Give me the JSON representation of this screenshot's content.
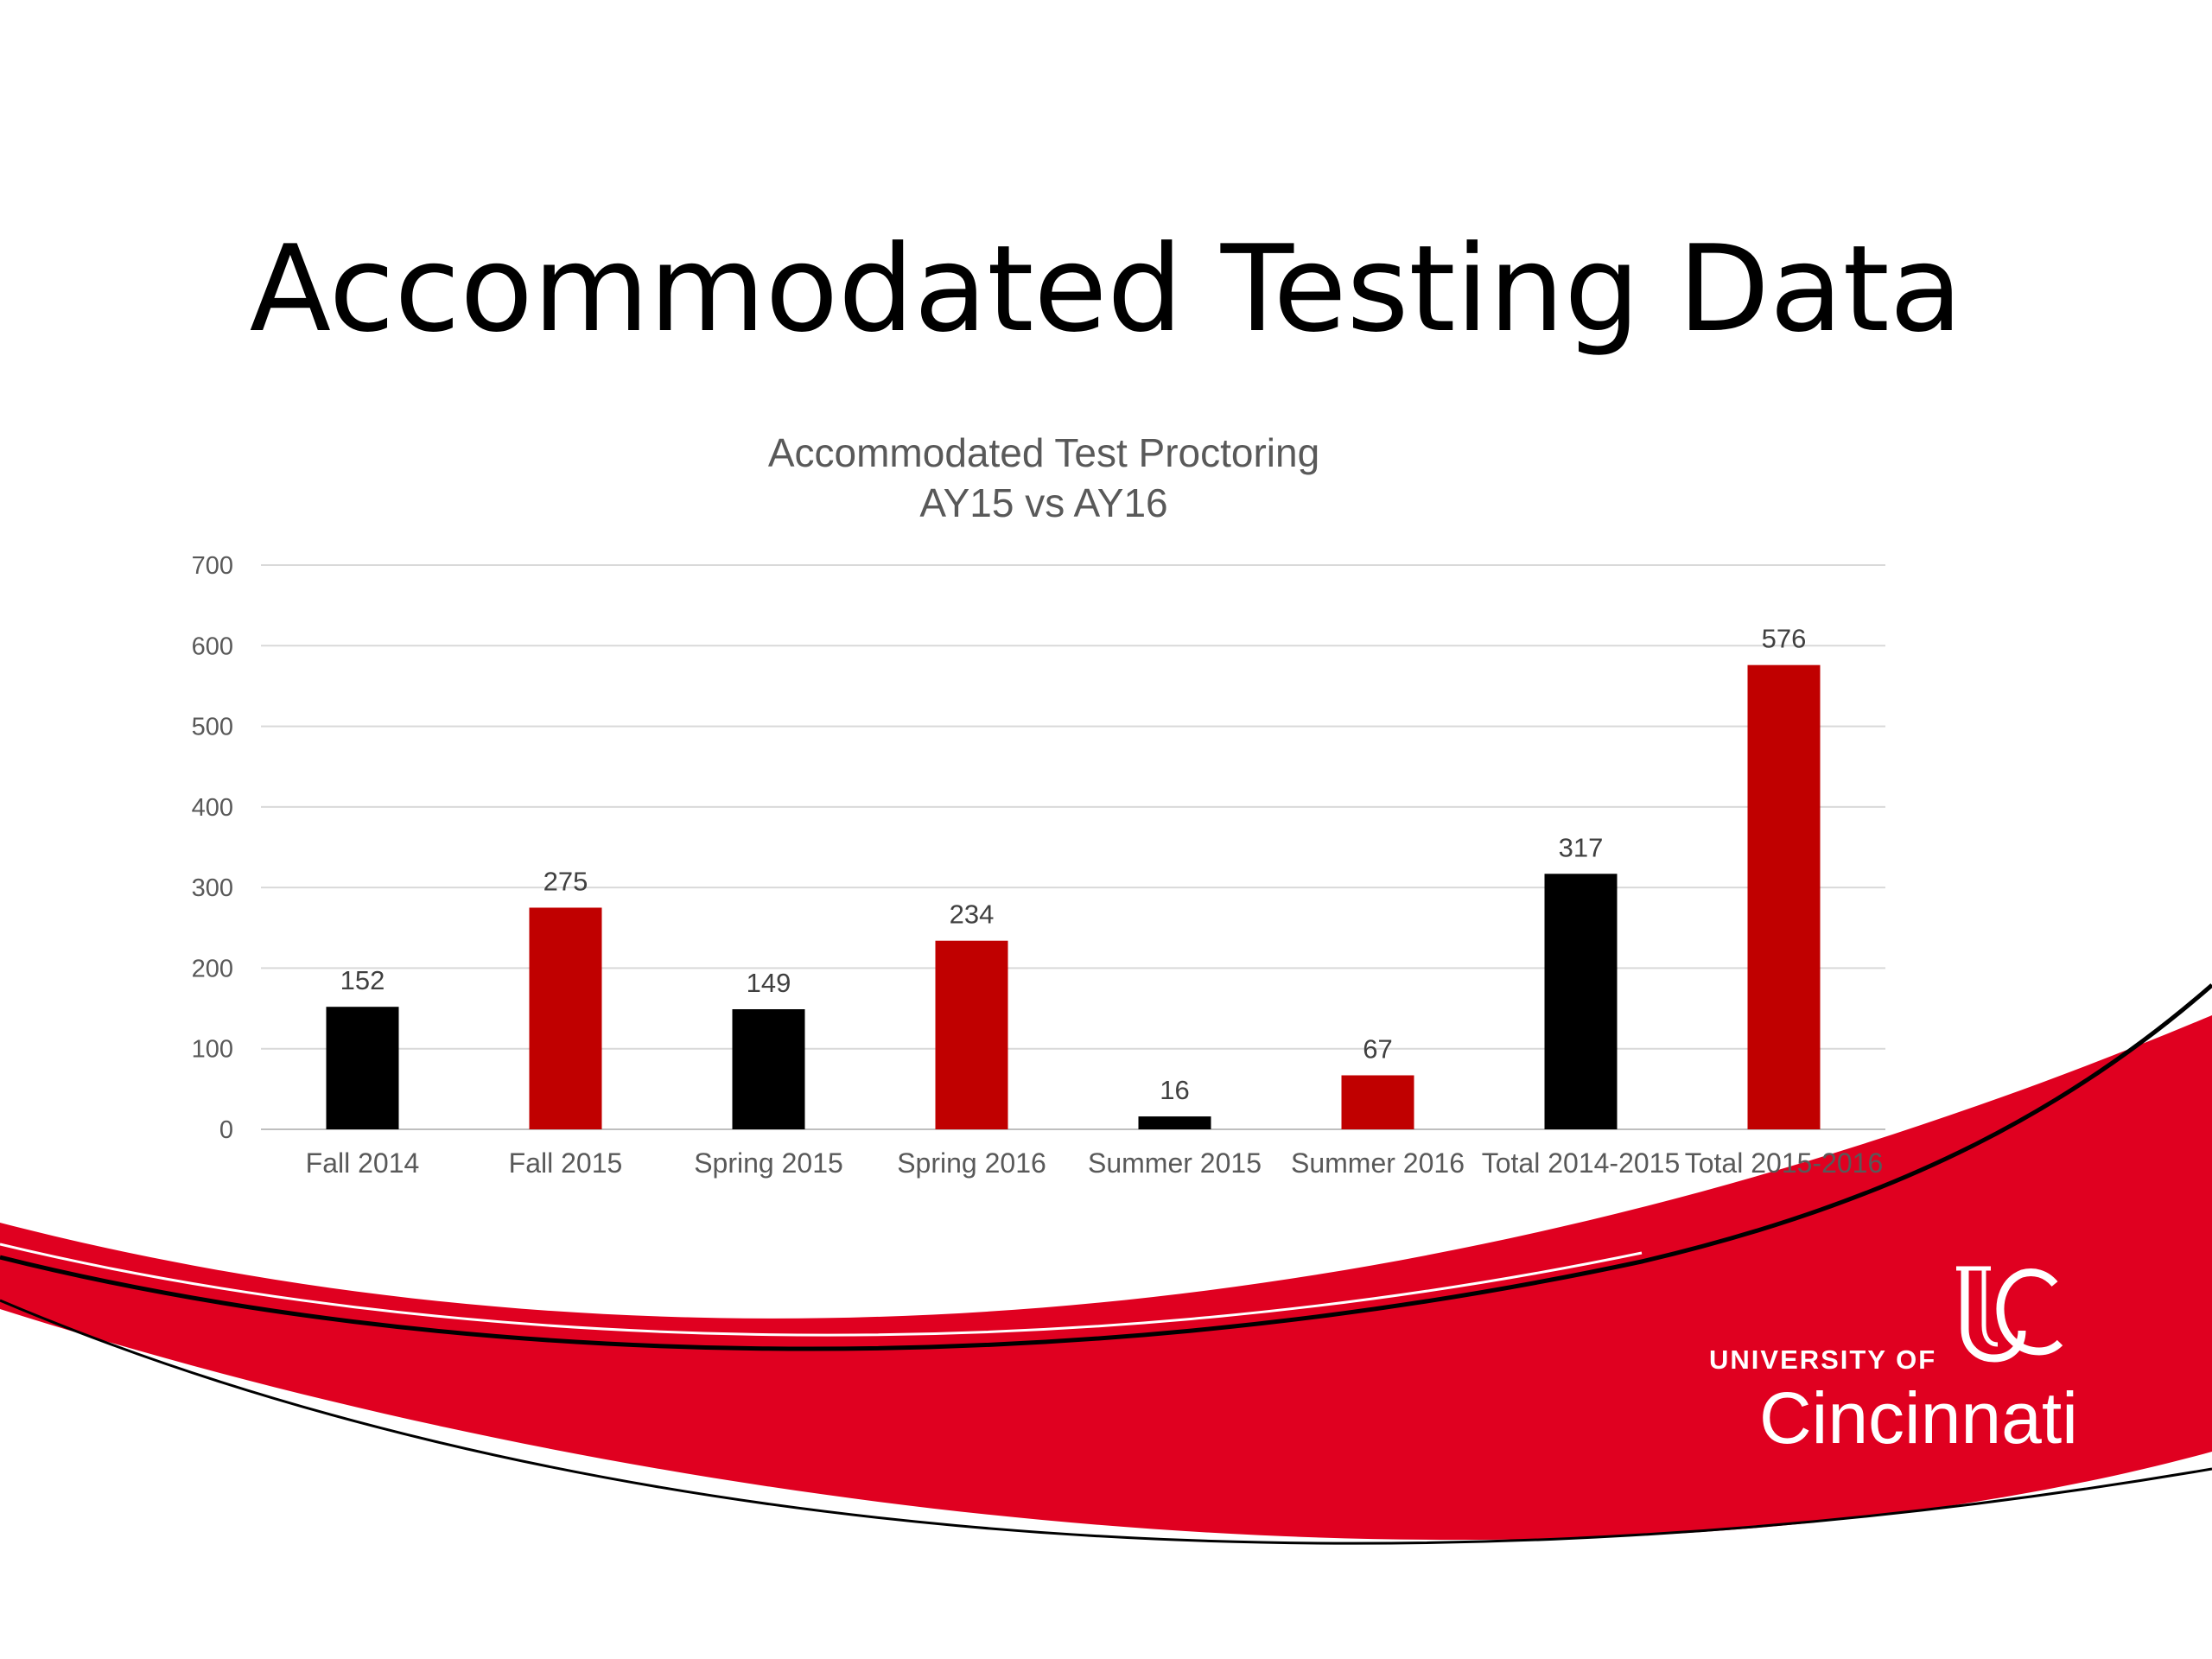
{
  "slide": {
    "title": "Accommodated Testing Data"
  },
  "colors": {
    "ay15": "#000000",
    "ay16": "#c00000",
    "swoosh_red": "#e00020",
    "gridline": "#d9d9d9",
    "text_gray": "#595959"
  },
  "logo": {
    "line1": "UNIVERSITY OF",
    "line2": "Cincinnati"
  },
  "chart_data": {
    "type": "bar",
    "title_lines": [
      "Accommodated Test Proctoring",
      "AY15 vs AY16"
    ],
    "categories": [
      "Fall 2014",
      "Fall 2015",
      "Spring 2015",
      "Spring 2016",
      "Summer 2015",
      "Summer 2016",
      "Total 2014-2015",
      "Total 2015-2016"
    ],
    "values": [
      152,
      275,
      149,
      234,
      16,
      67,
      317,
      576
    ],
    "bar_colors": [
      "#000000",
      "#c00000",
      "#000000",
      "#c00000",
      "#000000",
      "#c00000",
      "#000000",
      "#c00000"
    ],
    "ylim": [
      0,
      700
    ],
    "yticks": [
      0,
      100,
      200,
      300,
      400,
      500,
      600,
      700
    ],
    "grid": true,
    "legend": "none",
    "data_labels": true
  }
}
